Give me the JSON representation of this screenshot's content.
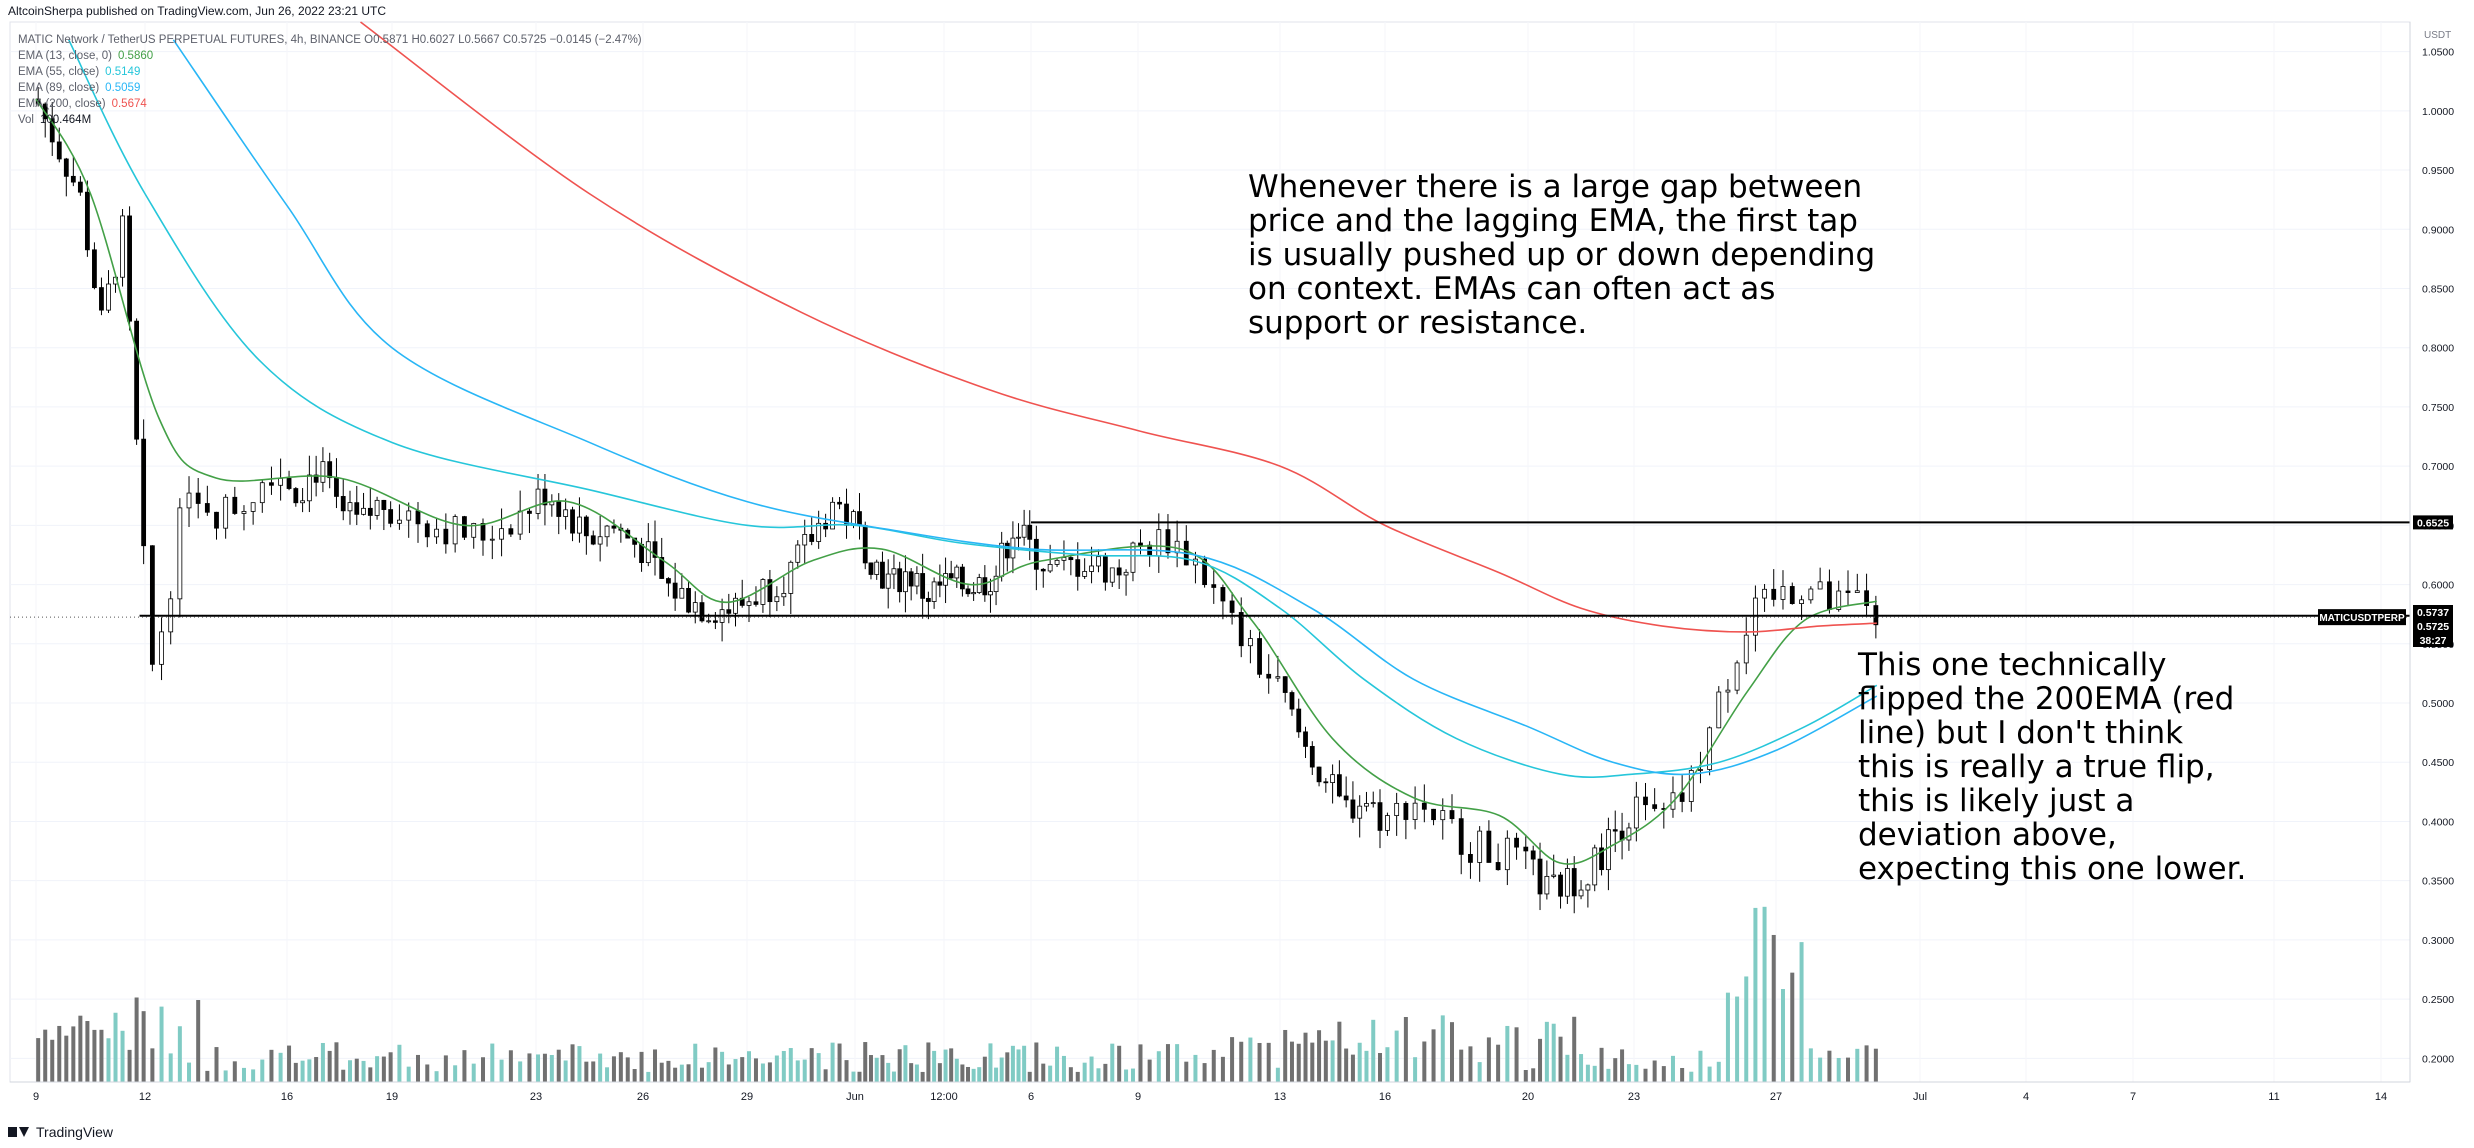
{
  "header": {
    "published": "AltcoinSherpa published on TradingView.com, Jun 26, 2022 23:21 UTC"
  },
  "legend": {
    "symbol_line": "MATIC Network / TetherUS PERPETUAL FUTURES, 4h, BINANCE  O0.5871  H0.6027  L0.5667  C0.5725  −0.0145 (−2.47%)",
    "indicators": [
      {
        "label": "EMA (13, close, 0)",
        "value": "0.5860",
        "color": "#43a047"
      },
      {
        "label": "EMA (55, close)",
        "value": "0.5149",
        "color": "#26c6da"
      },
      {
        "label": "EMA (89, close)",
        "value": "0.5059",
        "color": "#29b6f6"
      },
      {
        "label": "EMA (200, close)",
        "value": "0.5674",
        "color": "#ef5350"
      },
      {
        "label": "Vol",
        "value": "100.464M",
        "color": "#131722"
      }
    ]
  },
  "annotations": {
    "top": "Whenever there is a large gap between\nprice and the lagging EMA, the first tap\nis usually pushed up or down depending\non context. EMAs can often act as\nsupport or resistance.",
    "right": "This one technically\nflipped the 200EMA (red\nline) but I don't think\nthis is really a true flip,\nthis is likely just a\ndeviation above,\nexpecting this one lower."
  },
  "footer": {
    "brand": "TradingView"
  },
  "colors": {
    "up": "#ffffff",
    "down": "#000000",
    "candle_outline": "#000000",
    "ema13": "#43a047",
    "ema55": "#26c6da",
    "ema89": "#29b6f6",
    "ema200": "#ef5350",
    "vol_up": "#80cbc4",
    "vol_down": "#707070"
  },
  "chart_data": {
    "type": "line",
    "symbol": "MATICUSDTPERP",
    "timeframe": "4h",
    "currency": "USDT",
    "ylim": [
      0.18,
      1.075
    ],
    "y_ticks": [
      "1.0500",
      "1.0000",
      "0.9500",
      "0.9000",
      "0.8500",
      "0.8000",
      "0.7500",
      "0.7000",
      "0.6500",
      "0.6000",
      "0.5500",
      "0.5000",
      "0.4500",
      "0.4000",
      "0.3500",
      "0.3000",
      "0.2500",
      "0.2000"
    ],
    "x_ticks": [
      "9",
      "12",
      "16",
      "19",
      "23",
      "26",
      "29",
      "Jun",
      "12:00",
      "6",
      "9",
      "13",
      "16",
      "20",
      "23",
      "27",
      "Jul",
      "4",
      "7",
      "11",
      "14"
    ],
    "price_labels": [
      {
        "text": "0.6525",
        "value": 0.6525,
        "style": "level"
      },
      {
        "text": "0.5737",
        "value": 0.5737,
        "style": "level"
      },
      {
        "text": "0.5725",
        "value": 0.5725,
        "style": "last"
      },
      {
        "text": "38:27",
        "value": 0.5621,
        "style": "countdown"
      },
      {
        "text": "MATICUSDTPERP",
        "value": 0.5725,
        "style": "symbol"
      }
    ],
    "horizontal_levels": [
      {
        "price": 0.6525,
        "from_date": "Jun 5",
        "to_date": "Jun 27"
      },
      {
        "price": 0.5737,
        "from_date": "May 12",
        "to_date": "Jun 27"
      }
    ],
    "date_index": [
      "May 9",
      "May 12",
      "May 16",
      "May 19",
      "May 23",
      "May 26",
      "May 29",
      "Jun 1",
      "Jun 3",
      "Jun 6",
      "Jun 9",
      "Jun 13",
      "Jun 16",
      "Jun 20",
      "Jun 23",
      "Jun 27",
      "Jul 1",
      "Jul 4",
      "Jul 7",
      "Jul 11",
      "Jul 14"
    ],
    "close_path": [
      [
        0,
        1.01
      ],
      [
        0.2,
        0.97
      ],
      [
        0.4,
        0.93
      ],
      [
        0.6,
        0.82
      ],
      [
        0.8,
        0.9
      ],
      [
        1.0,
        0.6
      ],
      [
        1.05,
        0.53
      ],
      [
        1.15,
        0.58
      ],
      [
        1.3,
        0.69
      ],
      [
        1.5,
        0.66
      ],
      [
        1.7,
        0.67
      ],
      [
        1.9,
        0.7
      ],
      [
        2.1,
        0.68
      ],
      [
        2.3,
        0.7
      ],
      [
        2.5,
        0.66
      ],
      [
        2.7,
        0.65
      ],
      [
        2.9,
        0.67
      ],
      [
        3.1,
        0.66
      ],
      [
        3.3,
        0.65
      ],
      [
        3.6,
        0.64
      ],
      [
        3.9,
        0.66
      ],
      [
        4.1,
        0.68
      ],
      [
        4.3,
        0.66
      ],
      [
        4.5,
        0.64
      ],
      [
        4.7,
        0.65
      ],
      [
        5.0,
        0.63
      ],
      [
        5.2,
        0.6
      ],
      [
        5.4,
        0.59
      ],
      [
        5.6,
        0.58
      ],
      [
        5.9,
        0.58
      ],
      [
        6.2,
        0.6
      ],
      [
        6.4,
        0.61
      ],
      [
        6.6,
        0.64
      ],
      [
        6.8,
        0.67
      ],
      [
        7.0,
        0.65
      ],
      [
        7.2,
        0.62
      ],
      [
        7.4,
        0.6
      ],
      [
        7.6,
        0.61
      ],
      [
        7.8,
        0.59
      ],
      [
        8.0,
        0.6
      ],
      [
        8.2,
        0.6
      ],
      [
        8.4,
        0.6
      ],
      [
        8.6,
        0.61
      ],
      [
        8.8,
        0.65
      ],
      [
        9.0,
        0.63
      ],
      [
        9.2,
        0.61
      ],
      [
        9.5,
        0.62
      ],
      [
        9.8,
        0.61
      ],
      [
        10.0,
        0.63
      ],
      [
        10.2,
        0.64
      ],
      [
        10.4,
        0.62
      ],
      [
        10.6,
        0.58
      ],
      [
        10.8,
        0.54
      ],
      [
        11.0,
        0.51
      ],
      [
        11.2,
        0.47
      ],
      [
        11.4,
        0.44
      ],
      [
        11.6,
        0.41
      ],
      [
        11.8,
        0.42
      ],
      [
        12.0,
        0.4
      ],
      [
        12.2,
        0.42
      ],
      [
        12.4,
        0.4
      ],
      [
        12.6,
        0.38
      ],
      [
        12.9,
        0.37
      ],
      [
        13.2,
        0.34
      ],
      [
        13.4,
        0.35
      ],
      [
        13.6,
        0.36
      ],
      [
        13.8,
        0.39
      ],
      [
        14.0,
        0.41
      ],
      [
        14.2,
        0.4
      ],
      [
        14.4,
        0.43
      ],
      [
        14.6,
        0.5
      ],
      [
        14.8,
        0.57
      ],
      [
        15.0,
        0.59
      ],
      [
        15.2,
        0.6
      ],
      [
        15.4,
        0.58
      ],
      [
        15.6,
        0.59
      ],
      [
        15.7,
        0.5725
      ]
    ],
    "series": [
      {
        "name": "EMA (13, close, 0)",
        "last": 0.586,
        "points": [
          [
            0,
            1.01
          ],
          [
            0.5,
            0.93
          ],
          [
            1.1,
            0.74
          ],
          [
            1.5,
            0.69
          ],
          [
            2.5,
            0.69
          ],
          [
            3.5,
            0.65
          ],
          [
            4.3,
            0.67
          ],
          [
            5.2,
            0.62
          ],
          [
            5.8,
            0.585
          ],
          [
            6.6,
            0.62
          ],
          [
            7.3,
            0.63
          ],
          [
            8.3,
            0.6
          ],
          [
            9.1,
            0.62
          ],
          [
            10.3,
            0.63
          ],
          [
            10.8,
            0.57
          ],
          [
            11.5,
            0.47
          ],
          [
            12.2,
            0.42
          ],
          [
            12.8,
            0.405
          ],
          [
            13.3,
            0.365
          ],
          [
            13.8,
            0.38
          ],
          [
            14.3,
            0.42
          ],
          [
            14.8,
            0.51
          ],
          [
            15.2,
            0.57
          ],
          [
            15.7,
            0.586
          ]
        ]
      },
      {
        "name": "EMA (55, close)",
        "last": 0.5149,
        "points": [
          [
            0.3,
            1.06
          ],
          [
            1.0,
            0.93
          ],
          [
            1.8,
            0.79
          ],
          [
            3.0,
            0.72
          ],
          [
            4.5,
            0.68
          ],
          [
            6.0,
            0.65
          ],
          [
            7.0,
            0.65
          ],
          [
            8.2,
            0.635
          ],
          [
            9.5,
            0.625
          ],
          [
            10.4,
            0.62
          ],
          [
            11.0,
            0.58
          ],
          [
            11.8,
            0.52
          ],
          [
            12.5,
            0.47
          ],
          [
            13.3,
            0.44
          ],
          [
            14.0,
            0.44
          ],
          [
            14.6,
            0.45
          ],
          [
            15.2,
            0.48
          ],
          [
            15.7,
            0.5149
          ]
        ]
      },
      {
        "name": "EMA (89, close)",
        "last": 0.5059,
        "points": [
          [
            1.2,
            1.06
          ],
          [
            2.0,
            0.92
          ],
          [
            3.0,
            0.8
          ],
          [
            4.5,
            0.72
          ],
          [
            6.0,
            0.67
          ],
          [
            7.5,
            0.645
          ],
          [
            9.0,
            0.63
          ],
          [
            10.4,
            0.625
          ],
          [
            11.3,
            0.58
          ],
          [
            12.2,
            0.52
          ],
          [
            13.0,
            0.48
          ],
          [
            13.8,
            0.45
          ],
          [
            14.4,
            0.44
          ],
          [
            15.0,
            0.46
          ],
          [
            15.7,
            0.5059
          ]
        ]
      },
      {
        "name": "EMA (200, close)",
        "last": 0.5674,
        "points": [
          [
            2.7,
            1.075
          ],
          [
            4.5,
            0.93
          ],
          [
            6.5,
            0.83
          ],
          [
            8.5,
            0.765
          ],
          [
            10.0,
            0.73
          ],
          [
            11.0,
            0.7
          ],
          [
            12.0,
            0.65
          ],
          [
            12.8,
            0.61
          ],
          [
            13.5,
            0.58
          ],
          [
            14.2,
            0.565
          ],
          [
            14.8,
            0.56
          ],
          [
            15.3,
            0.565
          ],
          [
            15.7,
            0.5674
          ]
        ]
      }
    ],
    "volume": {
      "ylim_units": "relative",
      "bars_note": "Volume bars shown at bottom of pane; highest near Jun 23"
    }
  }
}
